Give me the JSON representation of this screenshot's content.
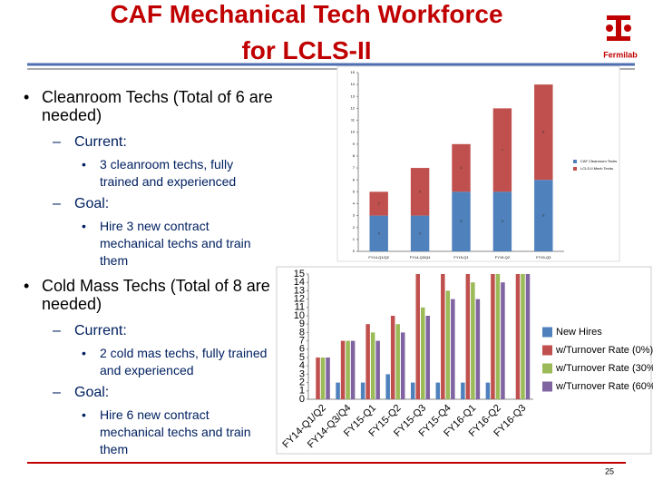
{
  "header": {
    "title_lines": [
      "CAF Mechanical Tech Workforce",
      "for LCLS-II"
    ],
    "logo": "Fermilab"
  },
  "bullets": [
    {
      "text": "Cleanroom Techs (Total of 6 are needed)",
      "items": [
        {
          "label": "Current:",
          "sub": "3 cleanroom techs, fully trained and experienced"
        },
        {
          "label": "Goal:",
          "sub": "Hire 3 new contract mechanical techs and train them"
        }
      ]
    },
    {
      "text": "Cold Mass Techs (Total of 8 are needed)",
      "items": [
        {
          "label": "Current:",
          "sub": "2 cold mas techs, fully trained and experienced"
        },
        {
          "label": "Goal:",
          "sub": "Hire 6 new contract mechanical techs and train them"
        }
      ]
    }
  ],
  "footer": {
    "page": "25"
  },
  "chart_data": [
    {
      "type": "stacked_bar",
      "categories": [
        "FY14-Q1/Q2",
        "FY14-Q3/Q4",
        "FY15-Q1",
        "FY15-Q2",
        "FY15-Q3"
      ],
      "series": [
        {
          "name": "CAF Cleanroom Techs",
          "color": "#4f81bd",
          "values": [
            3,
            3,
            5,
            5,
            6
          ]
        },
        {
          "name": "LCLS-II Mech Techs",
          "color": "#c0504d",
          "values": [
            2,
            4,
            4,
            7,
            8
          ]
        }
      ],
      "ylim": [
        0,
        15
      ],
      "yticks": [
        0,
        1,
        2,
        3,
        4,
        5,
        6,
        7,
        8,
        9,
        10,
        11,
        12,
        13,
        14,
        15
      ]
    },
    {
      "type": "bar",
      "categories": [
        "FY14-Q1/Q2",
        "FY14-Q3/Q4",
        "FY15-Q1",
        "FY15-Q2",
        "FY15-Q3",
        "FY15-Q4",
        "FY16-Q1",
        "FY16-Q2",
        "FY16-Q3"
      ],
      "series": [
        {
          "name": "New Hires",
          "color": "#4f81bd",
          "values": [
            0,
            2,
            2,
            3,
            2,
            2,
            2,
            2,
            0
          ]
        },
        {
          "name": "w/Turnover Rate (0%)",
          "color": "#c0504d",
          "values": [
            5,
            7,
            9,
            10,
            15,
            15,
            15,
            15,
            15
          ]
        },
        {
          "name": "w/Turnover Rate (30%)",
          "color": "#9bbb59",
          "values": [
            5,
            7,
            8,
            9,
            11,
            13,
            14,
            15,
            15
          ]
        },
        {
          "name": "w/Turnover Rate (60%)",
          "color": "#8064a2",
          "values": [
            5,
            7,
            7,
            8,
            10,
            12,
            12,
            14,
            15
          ]
        }
      ],
      "ylim": [
        0,
        15
      ],
      "yticks": [
        0,
        1,
        2,
        3,
        4,
        5,
        6,
        7,
        8,
        9,
        10,
        11,
        12,
        13,
        14,
        15
      ]
    }
  ]
}
